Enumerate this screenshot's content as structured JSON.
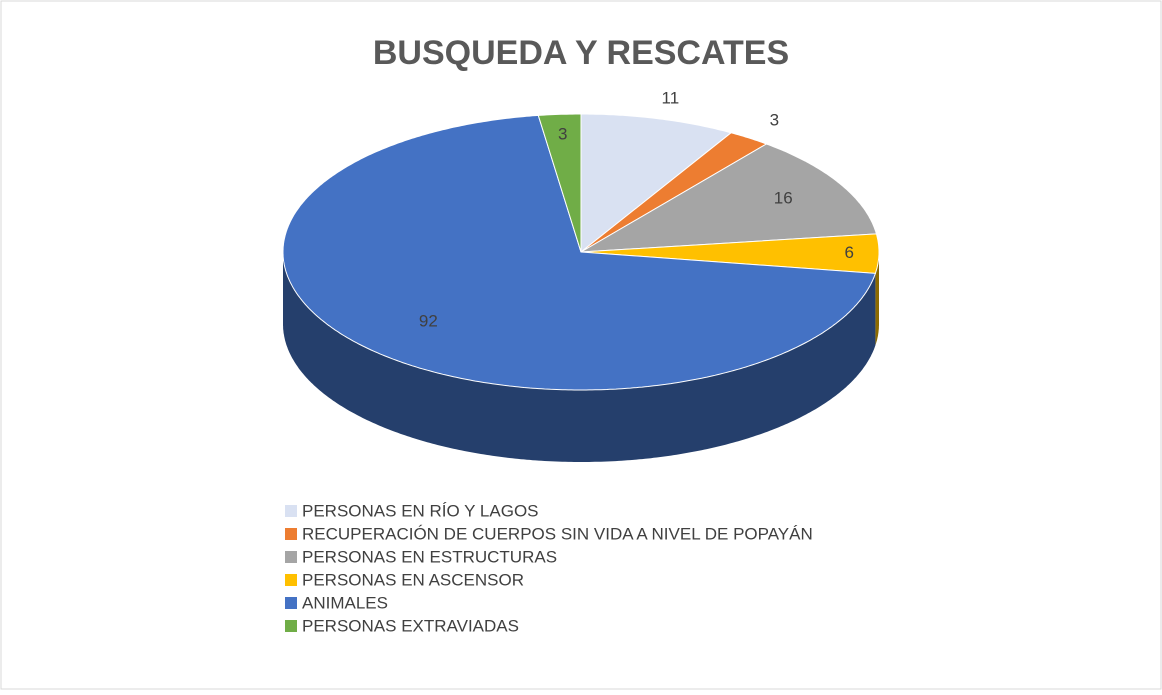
{
  "chart_data": {
    "type": "pie",
    "title": "BUSQUEDA Y RESCATES",
    "categories": [
      "PERSONAS EN RÍO Y LAGOS",
      "RECUPERACIÓN DE CUERPOS SIN VIDA A NIVEL DE POPAYÁN",
      "PERSONAS EN ESTRUCTURAS",
      "PERSONAS EN ASCENSOR",
      "ANIMALES",
      "PERSONAS EXTRAVIADAS"
    ],
    "values": [
      11,
      3,
      16,
      6,
      92,
      3
    ],
    "colors": [
      "#d9e1f2",
      "#ed7d31",
      "#a5a5a5",
      "#ffc000",
      "#4472c4",
      "#70ad47"
    ],
    "legend": "bottom"
  }
}
